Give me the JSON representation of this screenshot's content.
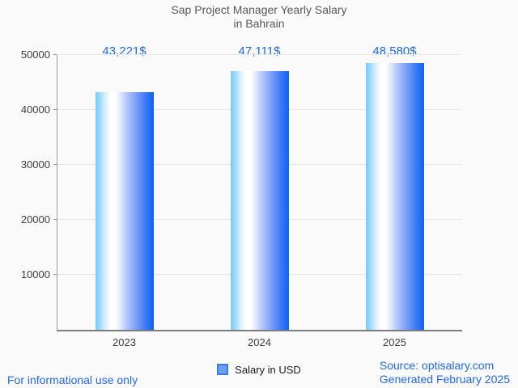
{
  "title": {
    "line1": "Sap Project Manager Yearly Salary",
    "line2": "in Bahrain"
  },
  "chart_data": {
    "type": "bar",
    "categories": [
      "2023",
      "2024",
      "2025"
    ],
    "series": [
      {
        "name": "Salary in USD",
        "values": [
          43221,
          47111,
          48580
        ]
      }
    ],
    "value_labels": [
      "43,221$",
      "47,111$",
      "48,580$"
    ],
    "title": "Sap Project Manager Yearly Salary in Bahrain",
    "xlabel": "",
    "ylabel": "",
    "ylim": [
      0,
      50000
    ],
    "yticks": [
      10000,
      20000,
      30000,
      40000,
      50000
    ],
    "grid": true,
    "legend_position": "bottom",
    "bar_gradient": [
      "#79c9f8",
      "#ffffff",
      "#0e63f2"
    ]
  },
  "legend": {
    "label": "Salary in USD",
    "swatch_color": "#6aa0f2",
    "swatch_border_color": "#3f79d9"
  },
  "footer": {
    "left_note": "For informational use only",
    "source_line1": "Source: optisalary.com",
    "source_line2": "Generated February 2025"
  },
  "colors": {
    "background": "#fafafa",
    "accent_blue": "#1e69e6",
    "title_gray": "#58585c",
    "axis_label_gray": "#3d3d3d",
    "gridline": "#e7e7e7",
    "axis_line": "#9b9b9b",
    "baseline": "#7c7c7c"
  }
}
